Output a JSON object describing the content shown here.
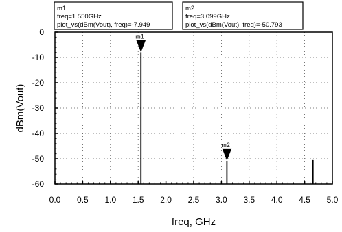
{
  "chart_data": {
    "type": "line",
    "xlabel": "freq, GHz",
    "ylabel": "dBm(Vout)",
    "xlim": [
      0.0,
      5.0
    ],
    "ylim": [
      -60,
      0
    ],
    "x_ticks": [
      "0.0",
      "0.5",
      "1.0",
      "1.5",
      "2.0",
      "2.5",
      "3.0",
      "3.5",
      "4.0",
      "4.5",
      "5.0"
    ],
    "y_ticks": [
      "0",
      "-10",
      "-20",
      "-30",
      "-40",
      "-50",
      "-60"
    ],
    "x_tick_values": [
      0.0,
      0.5,
      1.0,
      1.5,
      2.0,
      2.5,
      3.0,
      3.5,
      4.0,
      4.5,
      5.0
    ],
    "y_tick_values": [
      0,
      -10,
      -20,
      -30,
      -40,
      -50,
      -60
    ],
    "grid": true,
    "series": [
      {
        "x": [
          1.55,
          3.099,
          4.65
        ],
        "values": [
          -7.949,
          -50.793,
          -50.5
        ]
      }
    ],
    "markers": [
      {
        "label": "m1",
        "x": 1.55,
        "y": -7.949,
        "line1": "m1",
        "line2": "freq=1.550GHz",
        "line3": "plot_vs(dBm(Vout), freq)=-7.949"
      },
      {
        "label": "m2",
        "x": 3.099,
        "y": -50.793,
        "line1": "m2",
        "line2": "freq=3.099GHz",
        "line3": "plot_vs(dBm(Vout), freq)=-50.793"
      }
    ]
  }
}
